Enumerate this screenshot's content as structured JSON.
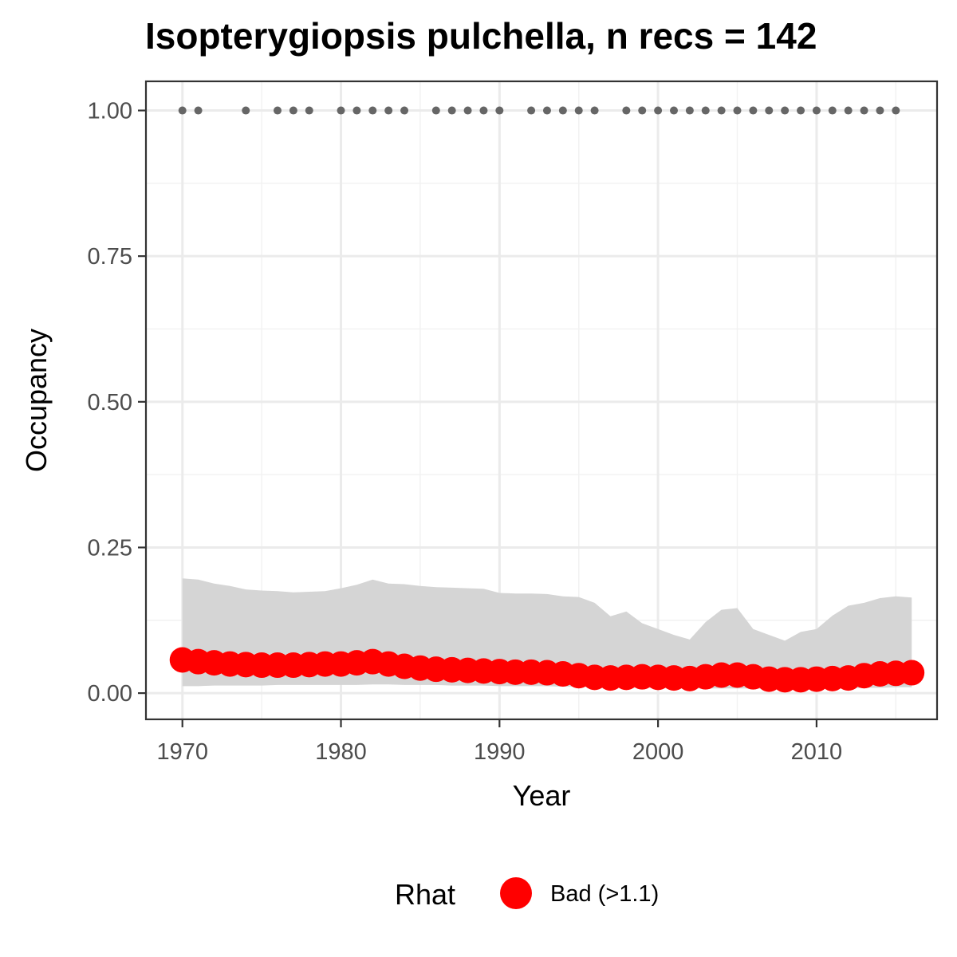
{
  "chart_data": {
    "type": "line",
    "title": "Isopterygiopsis pulchella, n recs = 142",
    "xlabel": "Year",
    "ylabel": "Occupancy",
    "xlim": [
      1967.7,
      2017.6
    ],
    "ylim": [
      -0.045,
      1.05
    ],
    "x_ticks": [
      1970,
      1980,
      1990,
      2000,
      2010
    ],
    "x_tick_labels": [
      "1970",
      "1980",
      "1990",
      "2000",
      "2010"
    ],
    "y_ticks": [
      0,
      0.25,
      0.5,
      0.75,
      1.0
    ],
    "y_tick_labels": [
      "0.00",
      "0.25",
      "0.50",
      "0.75",
      "1.00"
    ],
    "grid": true,
    "legend": {
      "title": "Rhat",
      "placement": "bottom",
      "entries": [
        {
          "label": "Bad (>1.1)",
          "color": "#ff0000"
        }
      ]
    },
    "series": [
      {
        "kind": "ribbon",
        "color": "#d5d5d5",
        "x": [
          1970,
          1971,
          1972,
          1973,
          1974,
          1975,
          1976,
          1977,
          1978,
          1979,
          1980,
          1981,
          1982,
          1983,
          1984,
          1985,
          1986,
          1987,
          1988,
          1989,
          1990,
          1991,
          1992,
          1993,
          1994,
          1995,
          1996,
          1997,
          1998,
          1999,
          2000,
          2001,
          2002,
          2003,
          2004,
          2005,
          2006,
          2007,
          2008,
          2009,
          2010,
          2011,
          2012,
          2013,
          2014,
          2015,
          2016
        ],
        "upper": [
          0.197,
          0.195,
          0.188,
          0.184,
          0.178,
          0.176,
          0.175,
          0.173,
          0.174,
          0.175,
          0.18,
          0.186,
          0.195,
          0.188,
          0.187,
          0.184,
          0.182,
          0.181,
          0.18,
          0.179,
          0.172,
          0.171,
          0.171,
          0.17,
          0.166,
          0.165,
          0.155,
          0.132,
          0.14,
          0.12,
          0.11,
          0.1,
          0.092,
          0.122,
          0.143,
          0.146,
          0.11,
          0.1,
          0.09,
          0.105,
          0.11,
          0.133,
          0.15,
          0.155,
          0.163,
          0.166,
          0.164
        ],
        "lower": [
          0.012,
          0.012,
          0.013,
          0.013,
          0.013,
          0.013,
          0.014,
          0.014,
          0.014,
          0.014,
          0.014,
          0.014,
          0.015,
          0.015,
          0.014,
          0.014,
          0.014,
          0.013,
          0.013,
          0.013,
          0.012,
          0.012,
          0.012,
          0.012,
          0.011,
          0.011,
          0.01,
          0.01,
          0.009,
          0.009,
          0.009,
          0.008,
          0.008,
          0.008,
          0.008,
          0.008,
          0.008,
          0.007,
          0.007,
          0.007,
          0.007,
          0.008,
          0.008,
          0.009,
          0.009,
          0.01,
          0.01
        ]
      },
      {
        "kind": "points",
        "name": "Bad (>1.1)",
        "color": "#ff0000",
        "x": [
          1970,
          1971,
          1972,
          1973,
          1974,
          1975,
          1976,
          1977,
          1978,
          1979,
          1980,
          1981,
          1982,
          1983,
          1984,
          1985,
          1986,
          1987,
          1988,
          1989,
          1990,
          1991,
          1992,
          1993,
          1994,
          1995,
          1996,
          1997,
          1998,
          1999,
          2000,
          2001,
          2002,
          2003,
          2004,
          2005,
          2006,
          2007,
          2008,
          2009,
          2010,
          2011,
          2012,
          2013,
          2014,
          2015,
          2016
        ],
        "values": [
          0.057,
          0.054,
          0.052,
          0.05,
          0.049,
          0.048,
          0.048,
          0.048,
          0.049,
          0.05,
          0.05,
          0.052,
          0.054,
          0.05,
          0.046,
          0.043,
          0.041,
          0.04,
          0.039,
          0.038,
          0.037,
          0.036,
          0.036,
          0.035,
          0.033,
          0.03,
          0.027,
          0.026,
          0.027,
          0.028,
          0.027,
          0.026,
          0.025,
          0.028,
          0.031,
          0.031,
          0.028,
          0.024,
          0.023,
          0.023,
          0.024,
          0.025,
          0.026,
          0.03,
          0.033,
          0.034,
          0.035
        ]
      },
      {
        "kind": "points",
        "role": "records",
        "color": "#666666",
        "x": [
          1970,
          1971,
          1974,
          1976,
          1977,
          1978,
          1980,
          1981,
          1982,
          1983,
          1984,
          1986,
          1987,
          1988,
          1989,
          1990,
          1992,
          1993,
          1994,
          1995,
          1996,
          1998,
          1999,
          2000,
          2001,
          2002,
          2003,
          2004,
          2005,
          2006,
          2007,
          2008,
          2009,
          2010,
          2011,
          2012,
          2013,
          2014,
          2015
        ],
        "values": [
          1,
          1,
          1,
          1,
          1,
          1,
          1,
          1,
          1,
          1,
          1,
          1,
          1,
          1,
          1,
          1,
          1,
          1,
          1,
          1,
          1,
          1,
          1,
          1,
          1,
          1,
          1,
          1,
          1,
          1,
          1,
          1,
          1,
          1,
          1,
          1,
          1,
          1,
          1
        ]
      }
    ]
  }
}
